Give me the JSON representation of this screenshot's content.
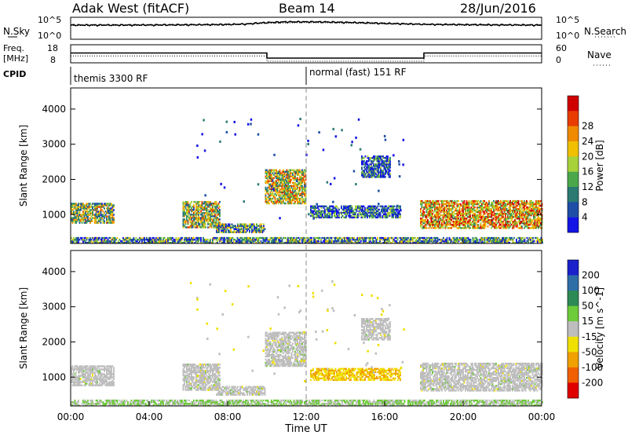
{
  "header": {
    "site": "Adak West (fitACF)",
    "beam": "Beam 14",
    "date": "28/Jun/2016"
  },
  "noise_panel": {
    "left_label": "N.Sky",
    "right_label": "N.Search",
    "left_ticks": [
      "10^5",
      "10^0"
    ],
    "right_ticks": [
      "10^5",
      "10^0"
    ]
  },
  "freq_panel": {
    "left_label_1": "Freq.",
    "left_label_2": "[MHz]",
    "left_ticks": [
      "18",
      "8"
    ],
    "right_label": "Nave",
    "right_ticks": [
      "60",
      "0"
    ],
    "cpid_label": "CPID"
  },
  "cpid_segments": [
    {
      "label": "themis 3300 RF",
      "start": 0,
      "end": 12
    },
    {
      "label": "normal (fast) 151 RF",
      "start": 12,
      "end": 24
    }
  ],
  "x_axis": {
    "title": "Time UT",
    "ticks": [
      "00:00",
      "04:00",
      "08:00",
      "12:00",
      "16:00",
      "20:00",
      "00:00"
    ]
  },
  "chart_data": [
    {
      "type": "line",
      "panel": "noise",
      "scale": "log",
      "ylim": [
        1,
        100000
      ],
      "series": [
        {
          "name": "N.Sky",
          "style": "solid",
          "x": [
            0,
            2,
            4,
            6,
            8,
            9,
            10,
            11,
            12,
            13,
            14,
            16,
            18,
            20,
            22,
            24
          ],
          "y": [
            2000,
            2000,
            2100,
            2300,
            2800,
            3500,
            8000,
            12000,
            12000,
            11000,
            9000,
            5000,
            3000,
            2500,
            2200,
            2000
          ]
        },
        {
          "name": "N.Search",
          "style": "dotted",
          "x": [
            0,
            4,
            8,
            10,
            12,
            14,
            16,
            20,
            24
          ],
          "y": [
            1500,
            1600,
            2000,
            5000,
            8000,
            6000,
            3500,
            1800,
            1500
          ]
        }
      ]
    },
    {
      "type": "line",
      "panel": "frequency",
      "series": [
        {
          "name": "Freq.",
          "unit": "MHz",
          "style": "solid",
          "ylim": [
            8,
            18
          ],
          "x": [
            0,
            10,
            10,
            18,
            18,
            24
          ],
          "y": [
            13.5,
            13.5,
            10.4,
            10.4,
            13.5,
            13.5
          ]
        },
        {
          "name": "Nave",
          "style": "dotted",
          "ylim": [
            0,
            60
          ],
          "x": [
            0,
            10,
            10,
            18,
            18,
            24
          ],
          "y": [
            22,
            22,
            3,
            3,
            22,
            22
          ]
        }
      ]
    },
    {
      "type": "heatmap",
      "panel": "power",
      "xlabel": "Time UT",
      "ylabel": "Slant Range [km]",
      "xlim": [
        0,
        24
      ],
      "ylim": [
        180,
        4600
      ],
      "yticks": [
        1000,
        2000,
        3000,
        4000
      ],
      "colorbar": {
        "label": "Power [dB]",
        "ticks": [
          4,
          8,
          12,
          16,
          20,
          24,
          28
        ],
        "range": [
          0,
          32
        ],
        "colors": [
          "#1414e6",
          "#1f4ea6",
          "#2a7a72",
          "#4aa84a",
          "#a8d23a",
          "#f0c000",
          "#f08a00",
          "#e83c00",
          "#d00000"
        ]
      },
      "regions": [
        {
          "t": [
            0.0,
            2.2
          ],
          "r": [
            750,
            1320
          ],
          "level": 0.45
        },
        {
          "t": [
            5.7,
            7.6
          ],
          "r": [
            620,
            1350
          ],
          "level": 0.5
        },
        {
          "t": [
            7.4,
            9.9
          ],
          "r": [
            480,
            720
          ],
          "level": 0.35
        },
        {
          "t": [
            9.9,
            12.0
          ],
          "r": [
            1300,
            2250
          ],
          "level": 0.55
        },
        {
          "t": [
            12.2,
            16.8
          ],
          "r": [
            900,
            1250
          ],
          "level": 0.2
        },
        {
          "t": [
            14.8,
            16.3
          ],
          "r": [
            2050,
            2650
          ],
          "level": 0.15
        },
        {
          "t": [
            17.8,
            24.0
          ],
          "r": [
            600,
            1380
          ],
          "level": 0.65
        },
        {
          "t": [
            0.0,
            24.0
          ],
          "r": [
            180,
            330
          ],
          "level": 0.3
        }
      ]
    },
    {
      "type": "heatmap",
      "panel": "velocity",
      "xlabel": "Time UT",
      "ylabel": "Slant Range [km]",
      "xlim": [
        0,
        24
      ],
      "ylim": [
        180,
        4600
      ],
      "yticks": [
        1000,
        2000,
        3000,
        4000
      ],
      "colorbar": {
        "label": "Velocity [m s^-1]",
        "ticks": [
          200,
          100,
          50,
          15,
          -15,
          -50,
          -100,
          -200
        ],
        "range": [
          -250,
          250
        ],
        "colors": [
          "#1a22cc",
          "#2e6ea8",
          "#2e8a55",
          "#6ecb3a",
          "#bebebe",
          "#f0e000",
          "#f0a000",
          "#f06000",
          "#e00000"
        ]
      },
      "regions": [
        {
          "t": [
            0.0,
            2.2
          ],
          "r": [
            750,
            1320
          ],
          "velocity": 0
        },
        {
          "t": [
            5.7,
            7.6
          ],
          "r": [
            620,
            1350
          ],
          "velocity": 0
        },
        {
          "t": [
            7.4,
            9.9
          ],
          "r": [
            480,
            720
          ],
          "velocity": 0
        },
        {
          "t": [
            9.9,
            12.0
          ],
          "r": [
            1300,
            2250
          ],
          "velocity": 0
        },
        {
          "t": [
            12.2,
            16.8
          ],
          "r": [
            900,
            1250
          ],
          "velocity": -80
        },
        {
          "t": [
            14.8,
            16.3
          ],
          "r": [
            2050,
            2650
          ],
          "velocity": 0
        },
        {
          "t": [
            17.8,
            24.0
          ],
          "r": [
            600,
            1380
          ],
          "velocity": 0
        },
        {
          "t": [
            0.0,
            24.0
          ],
          "r": [
            180,
            330
          ],
          "velocity": 30
        }
      ]
    }
  ]
}
